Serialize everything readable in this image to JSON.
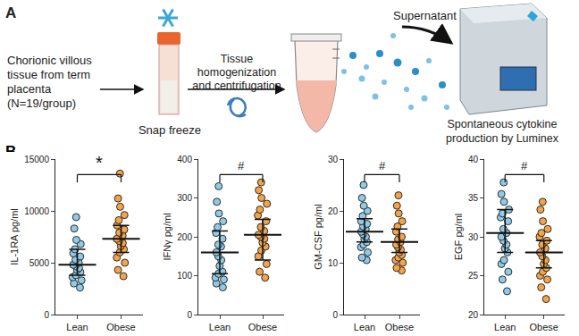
{
  "panel_a": {
    "label": "A",
    "tissue": [
      "Chorionic villous",
      "tissue from term",
      "placenta",
      "(N=19/group)"
    ],
    "freeze": "Snap freeze",
    "process": [
      "Tissue",
      "homogenization",
      "and centrifugation"
    ],
    "supernatant": "Supernatant",
    "readout": [
      "Spontaneous cytokine",
      "production by Luminex"
    ]
  },
  "panel_b_label": "B",
  "chart_data": [
    {
      "type": "scatter",
      "y_label": "IL-1RA pg/ml",
      "categories": [
        "Lean",
        "Obese"
      ],
      "colors": [
        "#8fcbe6",
        "#f5a347"
      ],
      "values": [
        [
          2600,
          3000,
          3300,
          3600,
          3800,
          4100,
          4300,
          4500,
          4700,
          4800,
          5000,
          5300,
          5600,
          5900,
          6300,
          6800,
          7200,
          8300,
          9400
        ],
        [
          3700,
          4300,
          5000,
          5500,
          6000,
          6300,
          6600,
          6900,
          7100,
          7300,
          7600,
          7900,
          8200,
          8600,
          9100,
          9600,
          10400,
          11200,
          13600
        ]
      ],
      "median": [
        4800,
        7300
      ],
      "error_low": [
        3800,
        6000
      ],
      "error_high": [
        6300,
        8600
      ],
      "ylim": [
        0,
        15000
      ],
      "yticks": [
        0,
        5000,
        10000,
        15000
      ],
      "significance": "*"
    },
    {
      "type": "scatter",
      "y_label": "IFNγ pg/ml",
      "categories": [
        "Lean",
        "Obese"
      ],
      "colors": [
        "#8fcbe6",
        "#f5a347"
      ],
      "values": [
        [
          70,
          80,
          90,
          95,
          105,
          110,
          125,
          140,
          150,
          160,
          175,
          180,
          195,
          210,
          225,
          240,
          260,
          290,
          330
        ],
        [
          95,
          110,
          130,
          150,
          165,
          175,
          185,
          195,
          200,
          205,
          215,
          225,
          240,
          255,
          270,
          285,
          300,
          320,
          340
        ]
      ],
      "median": [
        160,
        205
      ],
      "error_low": [
        105,
        140
      ],
      "error_high": [
        215,
        245
      ],
      "ylim": [
        0,
        400
      ],
      "yticks": [
        0,
        100,
        200,
        300,
        400
      ],
      "significance": "#"
    },
    {
      "type": "scatter",
      "y_label": "GM-CSF pg/ml",
      "categories": [
        "Lean",
        "Obese"
      ],
      "colors": [
        "#8fcbe6",
        "#f5a347"
      ],
      "values": [
        [
          10.5,
          11,
          12,
          13,
          13.5,
          14,
          14.5,
          15,
          15.5,
          16,
          16.5,
          17,
          17.5,
          18,
          19,
          20,
          21,
          22.5,
          25
        ],
        [
          8.5,
          9,
          10,
          10.5,
          11,
          11.5,
          12,
          12.5,
          13,
          13.5,
          14,
          14.5,
          15,
          16,
          17,
          18,
          19.5,
          21,
          23
        ]
      ],
      "median": [
        16,
        14
      ],
      "error_low": [
        14,
        12
      ],
      "error_high": [
        18.5,
        16.5
      ],
      "ylim": [
        0,
        30
      ],
      "yticks": [
        0,
        10,
        20,
        30
      ],
      "significance": "#"
    },
    {
      "type": "scatter",
      "y_label": "EGF pg/ml",
      "categories": [
        "Lean",
        "Obese"
      ],
      "colors": [
        "#8fcbe6",
        "#f5a347"
      ],
      "values": [
        [
          23,
          24.5,
          25.5,
          26.5,
          27,
          28,
          28.5,
          29,
          29.5,
          30,
          30.5,
          31,
          32,
          32.5,
          33,
          33.5,
          34.5,
          35.5,
          37
        ],
        [
          22,
          23.5,
          24.5,
          25,
          25.5,
          26,
          26.5,
          27,
          27.5,
          28,
          28.5,
          29,
          29.5,
          30,
          30.5,
          31,
          32,
          33.5,
          34.5
        ]
      ],
      "median": [
        30.5,
        28
      ],
      "error_low": [
        28,
        26
      ],
      "error_high": [
        33.5,
        29.5
      ],
      "ylim": [
        20,
        40
      ],
      "yticks": [
        20,
        25,
        30,
        35,
        40
      ],
      "significance": "#"
    }
  ]
}
